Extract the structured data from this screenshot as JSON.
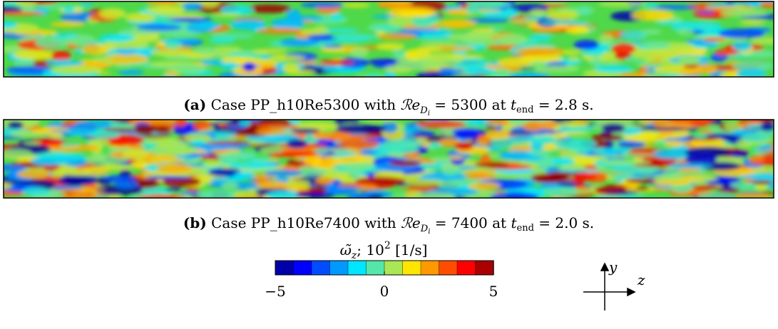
{
  "panels": [
    {
      "label": "(a)",
      "case": "Case PP_h10Re5300 with",
      "re_symbol": "ℛe",
      "re_sub": "D",
      "re_subsub": "i",
      "re_value": "= 5300 at",
      "t_symbol": "t",
      "t_sub": "end",
      "t_value": "= 2.8 s."
    },
    {
      "label": "(b)",
      "case": "Case PP_h10Re7400 with",
      "re_symbol": "ℛe",
      "re_sub": "D",
      "re_subsub": "i",
      "re_value": "= 7400 at",
      "t_symbol": "t",
      "t_sub": "end",
      "t_value": "= 2.0 s."
    }
  ],
  "colorbar": {
    "symbol": "ω̃",
    "sub": "z",
    "text": "; 10",
    "sup": "2",
    "unit": "[1/s]",
    "lim": [
      -5,
      5
    ],
    "ticks": [
      {
        "value": -5,
        "label": "−5"
      },
      0,
      5
    ]
  },
  "axes": {
    "y": "y",
    "z": "z"
  }
}
